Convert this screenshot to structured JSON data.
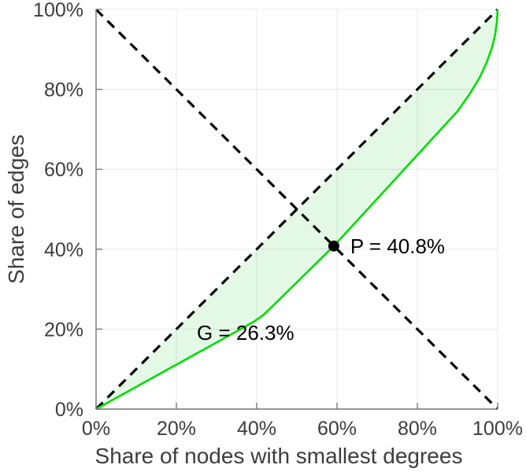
{
  "chart_data": {
    "type": "line",
    "title": "",
    "xlabel": "Share of nodes with smallest degrees",
    "ylabel": "Share of edges",
    "xlim": [
      0,
      100
    ],
    "ylim": [
      0,
      100
    ],
    "grid": true,
    "tick_values": [
      0,
      20,
      40,
      60,
      80,
      100
    ],
    "x_tick_labels": [
      "0%",
      "20%",
      "40%",
      "60%",
      "80%",
      "100%"
    ],
    "y_tick_labels": [
      "0%",
      "20%",
      "40%",
      "60%",
      "80%",
      "100%"
    ],
    "series": [
      {
        "name": "equality-diagonal",
        "style": "dashed",
        "color": "#000000",
        "points": [
          [
            0,
            0
          ],
          [
            100,
            100
          ]
        ]
      },
      {
        "name": "anti-diagonal",
        "style": "dashed",
        "color": "#000000",
        "points": [
          [
            0,
            100
          ],
          [
            100,
            0
          ]
        ]
      },
      {
        "name": "lorenz-curve",
        "style": "solid",
        "color": "#00dd00",
        "points": [
          [
            0,
            0
          ],
          [
            36,
            20
          ],
          [
            39.5,
            22
          ],
          [
            41.5,
            23.4
          ],
          [
            43.5,
            25.3
          ],
          [
            59.2,
            40.8
          ],
          [
            90,
            74.5
          ],
          [
            93,
            78.8
          ],
          [
            95.5,
            82.9
          ],
          [
            97.3,
            86.8
          ],
          [
            98.6,
            90.5
          ],
          [
            99.4,
            93.8
          ],
          [
            99.8,
            96.8
          ],
          [
            100,
            100
          ]
        ]
      }
    ],
    "fill_between": {
      "upper": "equality-diagonal",
      "lower": "lorenz-curve",
      "color": "#00c81e",
      "opacity": 0.11
    },
    "annotations": [
      {
        "name": "p-annotation",
        "label": "P = 40.8%",
        "text_x": 63.3,
        "text_y": 39.0,
        "marker": true,
        "marker_x": 59.2,
        "marker_y": 40.8,
        "marker_color": "#000000"
      },
      {
        "name": "g-annotation",
        "label": "G = 26.3%",
        "text_x": 25.1,
        "text_y": 17.3,
        "marker": false
      }
    ],
    "colors": {
      "grid": "#e8e8e8",
      "axis": "#777777",
      "tick_text": "#3d3d3d"
    }
  }
}
